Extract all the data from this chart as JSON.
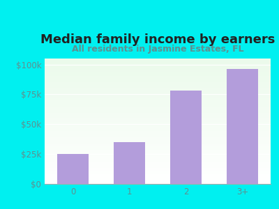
{
  "title": "Median family income by earners",
  "subtitle": "All residents in Jasmine Estates, FL",
  "categories": [
    "0",
    "1",
    "2",
    "3+"
  ],
  "values": [
    25000,
    35000,
    78000,
    96000
  ],
  "bar_color": "#b39ddb",
  "background_outer": "#00f0f0",
  "title_color": "#212121",
  "subtitle_color": "#5f9090",
  "axis_label_color": "#5f9090",
  "ytick_labels": [
    "$0",
    "$25k",
    "$50k",
    "$75k",
    "$100k"
  ],
  "ytick_values": [
    0,
    25000,
    50000,
    75000,
    100000
  ],
  "ylim": [
    0,
    105000
  ],
  "title_fontsize": 13,
  "subtitle_fontsize": 9,
  "tick_fontsize": 8.5
}
